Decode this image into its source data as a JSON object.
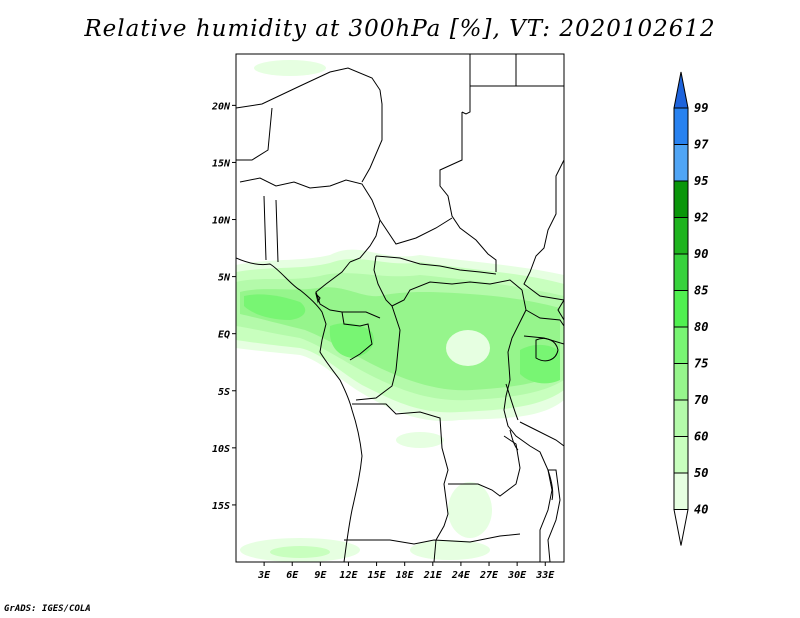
{
  "title": "Relative humidity at 300hPa [%], VT: 2020102612",
  "credit": "GrADS: IGES/COLA",
  "map": {
    "lat_labels": [
      "20N",
      "15N",
      "10N",
      "5N",
      "EQ",
      "5S",
      "10S",
      "15S"
    ],
    "lat_values": [
      20,
      15,
      10,
      5,
      0,
      -5,
      -10,
      -15
    ],
    "lon_labels": [
      "3E",
      "6E",
      "9E",
      "12E",
      "15E",
      "18E",
      "21E",
      "24E",
      "27E",
      "30E",
      "33E"
    ],
    "lon_values": [
      3,
      6,
      9,
      12,
      15,
      18,
      21,
      24,
      27,
      30,
      33
    ],
    "lat_range": [
      -20,
      24.5
    ],
    "lon_range": [
      0,
      35
    ]
  },
  "colorbar": {
    "labels": [
      "99",
      "97",
      "95",
      "92",
      "90",
      "85",
      "80",
      "75",
      "70",
      "60",
      "50",
      "40"
    ],
    "colors": [
      "#1e64dc",
      "#2882f0",
      "#50a5f5",
      "#0a960a",
      "#1eb41e",
      "#37d23c",
      "#50f050",
      "#78f573",
      "#96f58c",
      "#b4faaa",
      "#c8ffbe",
      "#e6ffe1",
      "#ffffff"
    ]
  },
  "colors": {
    "hum_40": "#e6ffe1",
    "hum_50": "#c8ffbe",
    "hum_60": "#b4faaa",
    "hum_70": "#96f58c",
    "hum_75": "#78f573"
  }
}
